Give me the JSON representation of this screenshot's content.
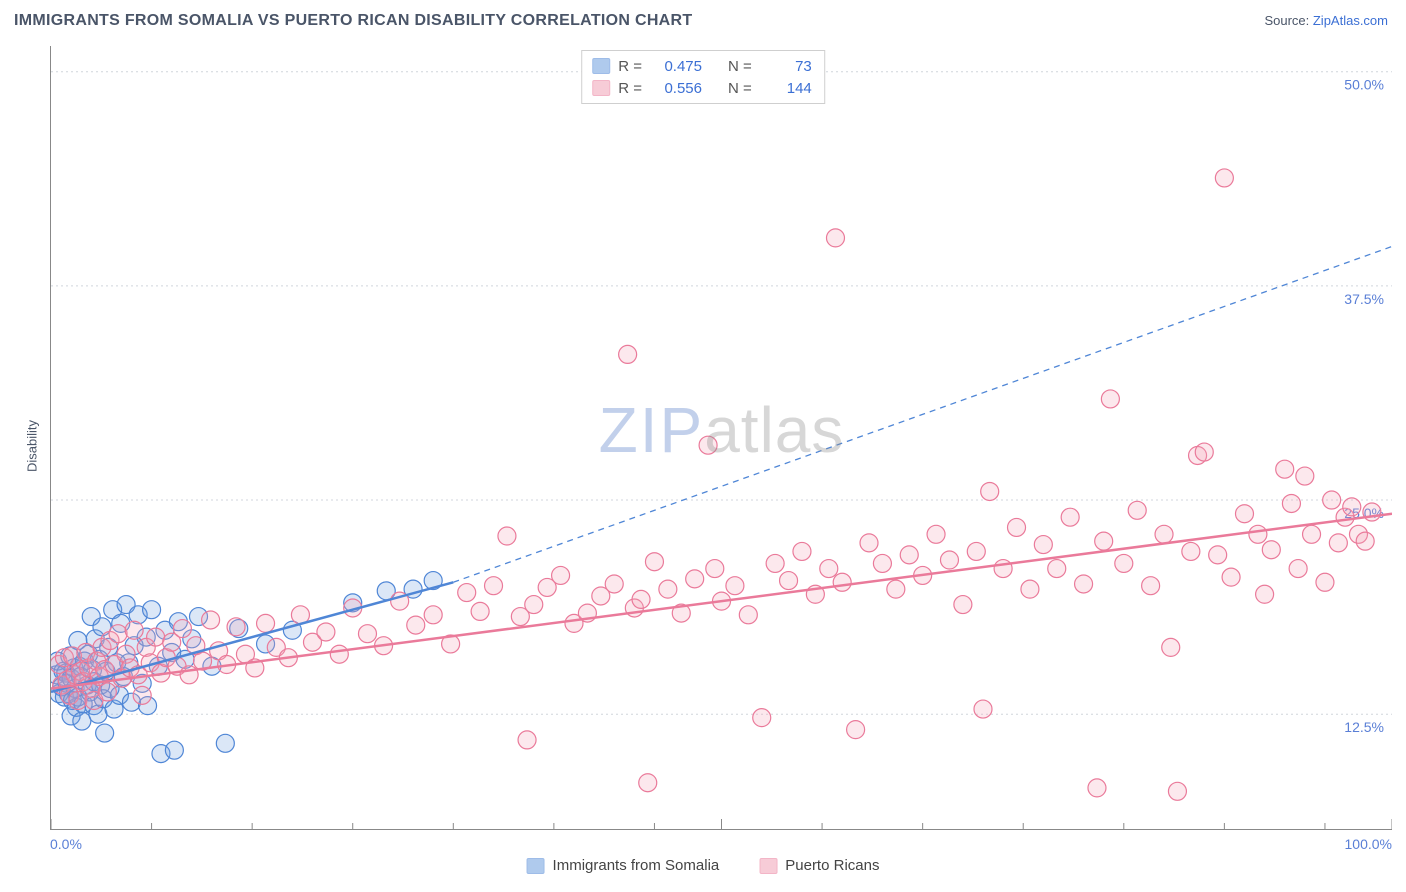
{
  "header": {
    "title": "IMMIGRANTS FROM SOMALIA VS PUERTO RICAN DISABILITY CORRELATION CHART",
    "source_prefix": "Source: ",
    "source_name": "ZipAtlas.com"
  },
  "ylabel": "Disability",
  "watermark": {
    "z": "ZIP",
    "rest": "atlas"
  },
  "chart": {
    "type": "scatter",
    "background_color": "#ffffff",
    "grid_color": "#d0d5dc",
    "axis_color": "#888888",
    "xlim": [
      0,
      100
    ],
    "ylim": [
      5.8,
      51.5
    ],
    "x_ticks_major": [
      0,
      50,
      100
    ],
    "x_ticks_minor": [
      7.5,
      15,
      22.5,
      30,
      37.5,
      45,
      57.5,
      65,
      72.5,
      80,
      87.5,
      95
    ],
    "y_gridlines": [
      12.5,
      25.0,
      37.5,
      50.0
    ],
    "x_tick_labels": [
      {
        "pos": 0,
        "label": "0.0%",
        "align": "start"
      },
      {
        "pos": 100,
        "label": "100.0%",
        "align": "end"
      }
    ],
    "y_tick_labels": [
      {
        "pos": 12.5,
        "label": "12.5%"
      },
      {
        "pos": 25.0,
        "label": "25.0%"
      },
      {
        "pos": 37.5,
        "label": "37.5%"
      },
      {
        "pos": 50.0,
        "label": "50.0%"
      }
    ],
    "marker_radius": 9,
    "marker_stroke_width": 1.2,
    "marker_fill_opacity": 0.25,
    "series": [
      {
        "id": "somalia",
        "name": "Immigrants from Somalia",
        "color": "#6ea0e0",
        "stroke": "#4f86d6",
        "r_value": "0.475",
        "n_value": "73",
        "trend": {
          "solid": {
            "x1": 0,
            "y1": 13.8,
            "x2": 30,
            "y2": 20.2,
            "width": 2.5
          },
          "dashed": {
            "x1": 30,
            "y1": 20.2,
            "x2": 100,
            "y2": 39.8,
            "dash": "6 5",
            "width": 1.3
          }
        },
        "points": [
          [
            0.4,
            14.8
          ],
          [
            0.5,
            15.6
          ],
          [
            0.6,
            13.7
          ],
          [
            0.8,
            14.1
          ],
          [
            0.9,
            15.0
          ],
          [
            1.0,
            13.5
          ],
          [
            1.1,
            14.9
          ],
          [
            1.2,
            14.3
          ],
          [
            1.3,
            13.7
          ],
          [
            1.4,
            15.9
          ],
          [
            1.5,
            14.6
          ],
          [
            1.5,
            12.4
          ],
          [
            1.6,
            13.3
          ],
          [
            1.7,
            15.2
          ],
          [
            1.8,
            14.0
          ],
          [
            1.9,
            12.9
          ],
          [
            2.0,
            13.5
          ],
          [
            2.0,
            16.8
          ],
          [
            2.1,
            15.3
          ],
          [
            2.2,
            14.7
          ],
          [
            2.3,
            12.1
          ],
          [
            2.4,
            13.1
          ],
          [
            2.5,
            15.6
          ],
          [
            2.7,
            14.2
          ],
          [
            2.8,
            16.0
          ],
          [
            2.9,
            13.8
          ],
          [
            3.0,
            18.2
          ],
          [
            3.1,
            15.1
          ],
          [
            3.2,
            13.0
          ],
          [
            3.2,
            14.4
          ],
          [
            3.3,
            16.9
          ],
          [
            3.5,
            12.5
          ],
          [
            3.6,
            15.7
          ],
          [
            3.7,
            14.2
          ],
          [
            3.8,
            17.6
          ],
          [
            3.9,
            13.4
          ],
          [
            4.0,
            11.4
          ],
          [
            4.1,
            15.0
          ],
          [
            4.3,
            16.4
          ],
          [
            4.4,
            14.0
          ],
          [
            4.6,
            18.6
          ],
          [
            4.7,
            12.8
          ],
          [
            4.9,
            15.5
          ],
          [
            5.1,
            13.6
          ],
          [
            5.2,
            17.8
          ],
          [
            5.4,
            14.7
          ],
          [
            5.6,
            18.9
          ],
          [
            5.8,
            15.5
          ],
          [
            6.0,
            13.2
          ],
          [
            6.2,
            16.5
          ],
          [
            6.5,
            18.3
          ],
          [
            6.8,
            14.3
          ],
          [
            7.1,
            17.0
          ],
          [
            7.2,
            13.0
          ],
          [
            7.5,
            18.6
          ],
          [
            8.0,
            15.3
          ],
          [
            8.2,
            10.2
          ],
          [
            8.5,
            17.4
          ],
          [
            9.0,
            16.1
          ],
          [
            9.2,
            10.4
          ],
          [
            9.5,
            17.9
          ],
          [
            10.0,
            15.7
          ],
          [
            10.5,
            16.9
          ],
          [
            11.0,
            18.2
          ],
          [
            12.0,
            15.3
          ],
          [
            13.0,
            10.8
          ],
          [
            14.0,
            17.5
          ],
          [
            16.0,
            16.6
          ],
          [
            18.0,
            17.4
          ],
          [
            22.5,
            19.0
          ],
          [
            25.0,
            19.7
          ],
          [
            27.0,
            19.8
          ],
          [
            28.5,
            20.3
          ]
        ]
      },
      {
        "id": "puertorican",
        "name": "Puerto Ricans",
        "color": "#f2a4b8",
        "stroke": "#ea7a9a",
        "r_value": "0.556",
        "n_value": "144",
        "trend": {
          "solid": {
            "x1": 0,
            "y1": 14.0,
            "x2": 100,
            "y2": 24.2,
            "width": 2.5
          }
        },
        "points": [
          [
            0.6,
            15.4
          ],
          [
            0.8,
            14.2
          ],
          [
            1.0,
            15.8
          ],
          [
            1.2,
            14.5
          ],
          [
            1.4,
            13.6
          ],
          [
            1.6,
            15.9
          ],
          [
            1.8,
            14.8
          ],
          [
            2.0,
            13.3
          ],
          [
            2.2,
            15.0
          ],
          [
            2.4,
            14.4
          ],
          [
            2.6,
            16.1
          ],
          [
            2.8,
            15.2
          ],
          [
            3.0,
            14.0
          ],
          [
            3.2,
            13.3
          ],
          [
            3.4,
            15.6
          ],
          [
            3.6,
            14.7
          ],
          [
            3.8,
            16.4
          ],
          [
            4.0,
            15.1
          ],
          [
            4.2,
            13.8
          ],
          [
            4.4,
            16.8
          ],
          [
            4.7,
            15.4
          ],
          [
            5.0,
            17.2
          ],
          [
            5.3,
            14.6
          ],
          [
            5.6,
            16.0
          ],
          [
            5.9,
            15.2
          ],
          [
            6.2,
            17.4
          ],
          [
            6.5,
            14.8
          ],
          [
            6.8,
            13.6
          ],
          [
            7.1,
            16.4
          ],
          [
            7.4,
            15.5
          ],
          [
            7.8,
            17.0
          ],
          [
            8.2,
            14.9
          ],
          [
            8.6,
            15.8
          ],
          [
            9.0,
            16.7
          ],
          [
            9.4,
            15.3
          ],
          [
            9.8,
            17.5
          ],
          [
            10.3,
            14.8
          ],
          [
            10.8,
            16.5
          ],
          [
            11.3,
            15.6
          ],
          [
            11.9,
            18.0
          ],
          [
            12.5,
            16.2
          ],
          [
            13.1,
            15.4
          ],
          [
            13.8,
            17.6
          ],
          [
            14.5,
            16.0
          ],
          [
            15.2,
            15.2
          ],
          [
            16.0,
            17.8
          ],
          [
            16.8,
            16.4
          ],
          [
            17.7,
            15.8
          ],
          [
            18.6,
            18.3
          ],
          [
            19.5,
            16.7
          ],
          [
            20.5,
            17.3
          ],
          [
            21.5,
            16.0
          ],
          [
            22.5,
            18.7
          ],
          [
            23.6,
            17.2
          ],
          [
            24.8,
            16.5
          ],
          [
            26.0,
            19.1
          ],
          [
            27.2,
            17.7
          ],
          [
            28.5,
            18.3
          ],
          [
            29.8,
            16.6
          ],
          [
            31.0,
            19.6
          ],
          [
            32.0,
            18.5
          ],
          [
            33.0,
            20.0
          ],
          [
            34.0,
            22.9
          ],
          [
            35.0,
            18.2
          ],
          [
            35.5,
            11.0
          ],
          [
            36.0,
            18.9
          ],
          [
            37.0,
            19.9
          ],
          [
            38.0,
            20.6
          ],
          [
            39.0,
            17.8
          ],
          [
            40.0,
            18.4
          ],
          [
            41.0,
            19.4
          ],
          [
            42.0,
            20.1
          ],
          [
            43.0,
            33.5
          ],
          [
            43.5,
            18.7
          ],
          [
            44.0,
            19.2
          ],
          [
            44.5,
            8.5
          ],
          [
            45.0,
            21.4
          ],
          [
            46.0,
            19.8
          ],
          [
            47.0,
            18.4
          ],
          [
            48.0,
            20.4
          ],
          [
            49.0,
            28.2
          ],
          [
            49.5,
            21.0
          ],
          [
            50.0,
            19.1
          ],
          [
            51.0,
            20.0
          ],
          [
            52.0,
            18.3
          ],
          [
            53.0,
            12.3
          ],
          [
            54.0,
            21.3
          ],
          [
            55.0,
            20.3
          ],
          [
            56.0,
            22.0
          ],
          [
            57.0,
            19.5
          ],
          [
            58.0,
            21.0
          ],
          [
            58.5,
            40.3
          ],
          [
            59.0,
            20.2
          ],
          [
            60.0,
            11.6
          ],
          [
            61.0,
            22.5
          ],
          [
            62.0,
            21.3
          ],
          [
            63.0,
            19.8
          ],
          [
            64.0,
            21.8
          ],
          [
            65.0,
            20.6
          ],
          [
            66.0,
            23.0
          ],
          [
            67.0,
            21.5
          ],
          [
            68.0,
            18.9
          ],
          [
            69.0,
            22.0
          ],
          [
            69.5,
            12.8
          ],
          [
            70.0,
            25.5
          ],
          [
            71.0,
            21.0
          ],
          [
            72.0,
            23.4
          ],
          [
            73.0,
            19.8
          ],
          [
            74.0,
            22.4
          ],
          [
            75.0,
            21.0
          ],
          [
            76.0,
            24.0
          ],
          [
            77.0,
            20.1
          ],
          [
            78.0,
            8.2
          ],
          [
            78.5,
            22.6
          ],
          [
            79.0,
            30.9
          ],
          [
            80.0,
            21.3
          ],
          [
            81.0,
            24.4
          ],
          [
            82.0,
            20.0
          ],
          [
            83.0,
            23.0
          ],
          [
            83.5,
            16.4
          ],
          [
            84.0,
            8.0
          ],
          [
            85.0,
            22.0
          ],
          [
            85.5,
            27.6
          ],
          [
            86.0,
            27.8
          ],
          [
            87.0,
            21.8
          ],
          [
            87.5,
            43.8
          ],
          [
            88.0,
            20.5
          ],
          [
            89.0,
            24.2
          ],
          [
            90.0,
            23.0
          ],
          [
            90.5,
            19.5
          ],
          [
            91.0,
            22.1
          ],
          [
            92.0,
            26.8
          ],
          [
            92.5,
            24.8
          ],
          [
            93.0,
            21.0
          ],
          [
            93.5,
            26.4
          ],
          [
            94.0,
            23.0
          ],
          [
            95.0,
            20.2
          ],
          [
            95.5,
            25.0
          ],
          [
            96.0,
            22.5
          ],
          [
            96.5,
            24.0
          ],
          [
            97.0,
            24.6
          ],
          [
            97.5,
            23.0
          ],
          [
            98.0,
            22.6
          ],
          [
            98.5,
            24.3
          ]
        ]
      }
    ]
  },
  "stats_legend": {
    "rows": [
      {
        "series": "somalia",
        "r_label": "R =",
        "n_label": "N ="
      },
      {
        "series": "puertorican",
        "r_label": "R =",
        "n_label": "N ="
      }
    ]
  }
}
